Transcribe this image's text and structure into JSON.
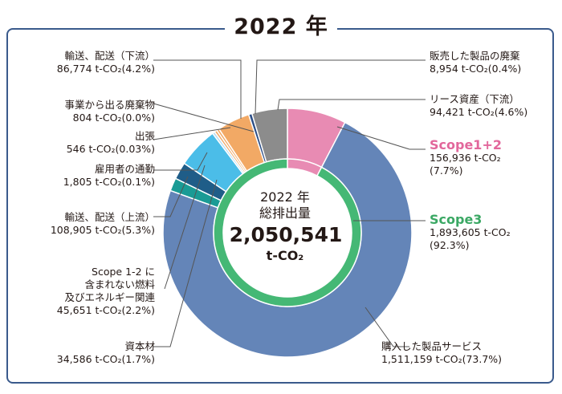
{
  "title": "2022 年",
  "center": {
    "line1": "2022 年",
    "line2": "総排出量",
    "total": "2,050,541",
    "unit": "t-CO₂"
  },
  "chart_data": {
    "type": "pie",
    "unit": "t-CO2",
    "total": 2050541,
    "inner_ring": [
      {
        "name": "Scope1+2",
        "value": 156936,
        "percent": 7.7,
        "color": "#e88bb3"
      },
      {
        "name": "Scope3",
        "value": 1893605,
        "percent": 92.3,
        "color": "#45b875"
      }
    ],
    "outer_ring": [
      {
        "name": "Scope1+2",
        "value": 156936,
        "percent": 7.7,
        "color": "#e88bb3"
      },
      {
        "name": "購入した製品サービス",
        "value": 1511159,
        "percent": 73.7,
        "color": "#6485b8"
      },
      {
        "name": "資本材",
        "value": 34586,
        "percent": 1.7,
        "color": "#1a9b95"
      },
      {
        "name": "Scope 1-2 に含まれない燃料及びエネルギー関連",
        "value": 45651,
        "percent": 2.2,
        "color": "#1f5d88"
      },
      {
        "name": "輸送、配送（上流）",
        "value": 108905,
        "percent": 5.3,
        "color": "#4bbde8"
      },
      {
        "name": "雇用者の通勤",
        "value": 1805,
        "percent": 0.1,
        "color": "#b9dcf0"
      },
      {
        "name": "出張",
        "value": 546,
        "percent": 0.03,
        "color": "#f2a965"
      },
      {
        "name": "事業から出る廃棄物",
        "value": 804,
        "percent": 0.0,
        "color": "#f2a965"
      },
      {
        "name": "輸送、配送（下流）",
        "value": 86774,
        "percent": 4.2,
        "color": "#f2a965"
      },
      {
        "name": "販売した製品の廃棄",
        "value": 8954,
        "percent": 0.4,
        "color": "#2c4e86"
      },
      {
        "name": "リース資産（下流）",
        "value": 94421,
        "percent": 4.6,
        "color": "#8c8c8c"
      }
    ]
  },
  "labels": {
    "downstream_transport": {
      "name": "輸送、配送（下流）",
      "value": "86,774 t-CO₂(4.2%)"
    },
    "waste": {
      "name": "事業から出る廃棄物",
      "value": "804 t-CO₂(0.0%)"
    },
    "business_travel": {
      "name": "出張",
      "value": "546 t-CO₂(0.03%)"
    },
    "commuting": {
      "name": "雇用者の通勤",
      "value": "1,805 t-CO₂(0.1%)"
    },
    "upstream_transport": {
      "name": "輸送、配送（上流）",
      "value": "108,905 t-CO₂(5.3%)"
    },
    "fuel_energy": {
      "line1": "Scope 1-2 に",
      "line2": "含まれない燃料",
      "line3": "及びエネルギー関連",
      "value": "45,651 t-CO₂(2.2%)"
    },
    "capital_goods": {
      "name": "資本材",
      "value": "34,586 t-CO₂(1.7%)"
    },
    "end_of_life": {
      "name": "販売した製品の廃棄",
      "value": "8,954 t-CO₂(0.4%)"
    },
    "leased_assets": {
      "name": "リース資産（下流）",
      "value": "94,421 t-CO₂(4.6%)"
    },
    "scope12": {
      "name": "Scope1+2",
      "value": "156,936 t-CO₂",
      "percent": "(7.7%)"
    },
    "scope3": {
      "name": "Scope3",
      "value": "1,893,605 t-CO₂",
      "percent": "(92.3%)"
    },
    "purchased_goods": {
      "name": "購入した製品サービス",
      "value": "1,511,159 t-CO₂(73.7%)"
    }
  }
}
